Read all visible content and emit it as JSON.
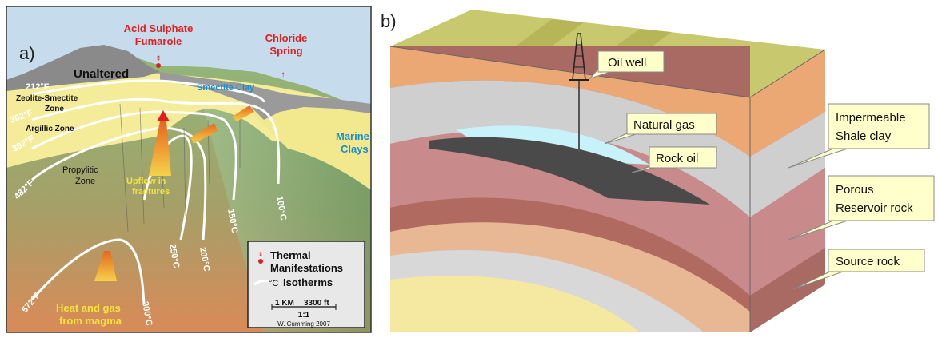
{
  "panel_a": {
    "label": "a)",
    "labels": {
      "acid_sulphate_1": "Acid Sulphate",
      "acid_sulphate_2": "Fumarole",
      "chloride_1": "Chloride",
      "chloride_2": "Spring",
      "unaltered": "Unaltered",
      "smectite_clay": "Smectite Clay",
      "zeolite_1": "Zeolite-Smectite",
      "zeolite_2": "Zone",
      "argillic": "Argillic Zone",
      "marine_1": "Marine",
      "marine_2": "Clays",
      "propylitic_1": "Propylitic",
      "propylitic_2": "Zone",
      "upflow_1": "Upflow in",
      "upflow_2": "fractures",
      "heat_1": "Heat and gas",
      "heat_2": "from magma"
    },
    "isotherms": {
      "f212": "212°F",
      "f302": "302°F",
      "f392": "392°F",
      "f482": "482°F",
      "f572": "572°F",
      "c100": "100°C",
      "c150": "150°C",
      "c200": "200°C",
      "c250": "250°C",
      "c300": "300°C"
    },
    "legend": {
      "thermal_1": "Thermal",
      "thermal_2": "Manifestations",
      "isotherm_unit": "°C",
      "isotherms": "Isotherms",
      "scale_km": "1 KM",
      "scale_ft": "3300 ft",
      "ratio": "1:1",
      "credit": "W. Cumming 2007"
    },
    "colors": {
      "sky": "#c6dced",
      "green": "#7fa86e",
      "yellow": "#f5ec9a",
      "gray": "#9a9a9a",
      "red": "#e02020",
      "isotherm": "#ffffff"
    }
  },
  "panel_b": {
    "label": "b)",
    "callouts": {
      "oil_well": "Oil well",
      "natural_gas": "Natural gas",
      "rock_oil": "Rock oil",
      "impermeable_1": "Impermeable",
      "impermeable_2": "Shale clay",
      "porous_1": "Porous",
      "porous_2": "Reservoir rock",
      "source_rock": "Source rock"
    },
    "colors": {
      "top": "#c8c86e",
      "orange": "#eca874",
      "shale": "#cfcfcf",
      "gas": "#c8f2fa",
      "oil": "#4a4a4a",
      "reservoir": "#c88a8a",
      "source": "#b06a60",
      "callout": "#ffffcc"
    }
  }
}
